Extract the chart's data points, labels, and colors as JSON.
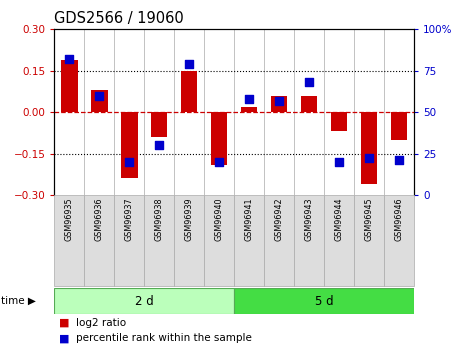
{
  "title": "GDS2566 / 19060",
  "samples": [
    "GSM96935",
    "GSM96936",
    "GSM96937",
    "GSM96938",
    "GSM96939",
    "GSM96940",
    "GSM96941",
    "GSM96942",
    "GSM96943",
    "GSM96944",
    "GSM96945",
    "GSM96946"
  ],
  "log2_ratio": [
    0.19,
    0.08,
    -0.24,
    -0.09,
    0.15,
    -0.19,
    0.02,
    0.06,
    0.06,
    -0.07,
    -0.26,
    -0.1
  ],
  "percentile_rank": [
    82,
    60,
    20,
    30,
    79,
    20,
    58,
    57,
    68,
    20,
    22,
    21
  ],
  "group1_count": 6,
  "group2_count": 6,
  "group1_label": "2 d",
  "group2_label": "5 d",
  "legend_red": "log2 ratio",
  "legend_blue": "percentile rank within the sample",
  "ylim": [
    -0.3,
    0.3
  ],
  "yticks": [
    -0.3,
    -0.15,
    0.0,
    0.15,
    0.3
  ],
  "y2ticks": [
    0,
    25,
    50,
    75,
    100
  ],
  "red_color": "#CC0000",
  "blue_color": "#0000CC",
  "group1_bg": "#BBFFBB",
  "group2_bg": "#44DD44",
  "label_bg": "#DDDDDD",
  "label_edge": "#AAAAAA"
}
